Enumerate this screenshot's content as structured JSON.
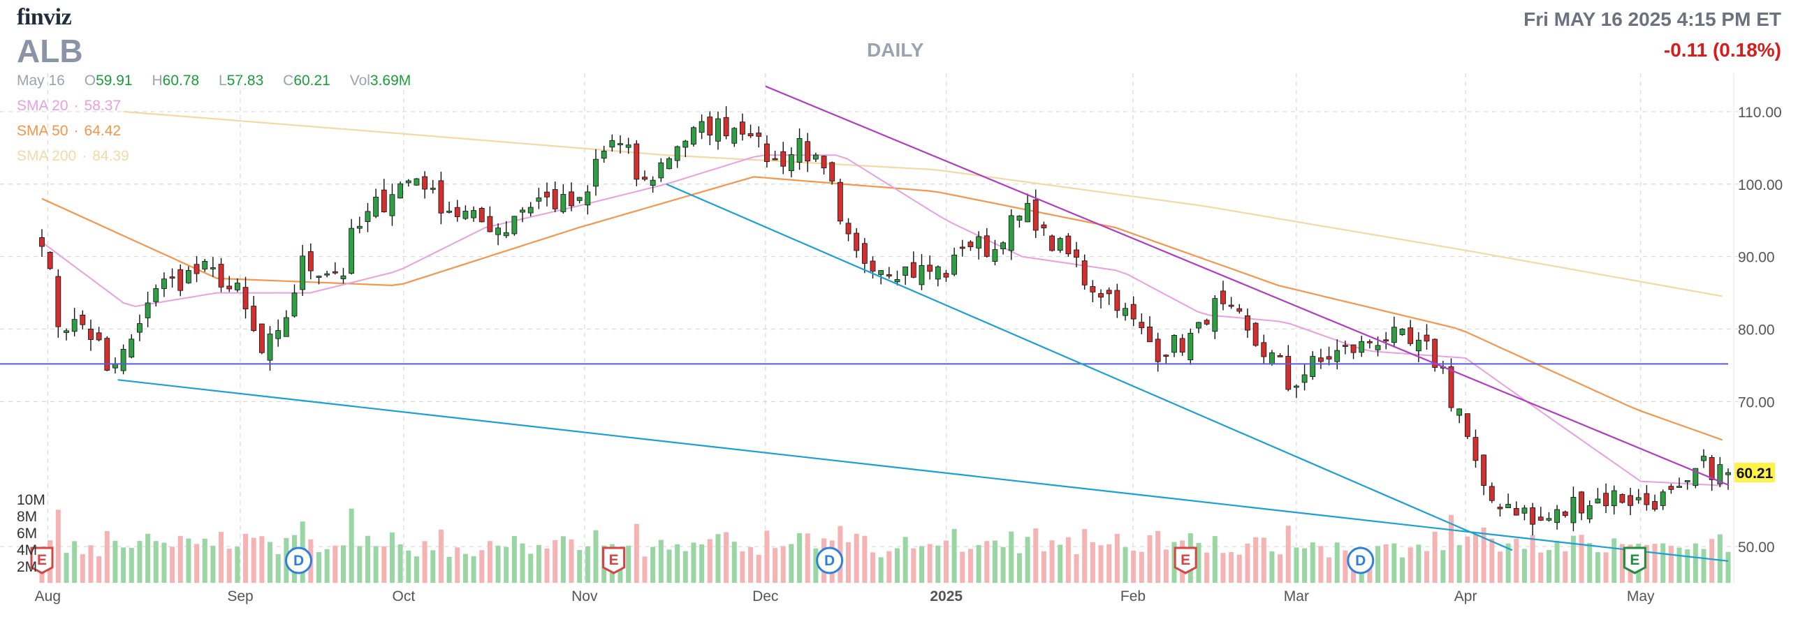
{
  "header": {
    "logo": "finviz",
    "ticker": "ALB",
    "period": "DAILY",
    "datetime": "Fri MAY 16 2025 4:15 PM ET",
    "change": "-0.11 (0.18%)"
  },
  "ohlc": {
    "date": "May 16",
    "open_label": "O",
    "open": "59.91",
    "high_label": "H",
    "high": "60.78",
    "low_label": "L",
    "low": "57.83",
    "close_label": "C",
    "close": "60.21",
    "vol_label": "Vol",
    "vol": "3.69M"
  },
  "sma": {
    "sma20_label": "SMA 20",
    "sma20": "58.37",
    "sma50_label": "SMA 50",
    "sma50": "64.42",
    "sma200_label": "SMA 200",
    "sma200": "84.39"
  },
  "colors": {
    "up": "#2ea043",
    "down": "#d32f2f",
    "up_volume": "#9ad6a3",
    "down_volume": "#f5b3b3",
    "sma20": "#e8a0e0",
    "sma50": "#f4964b",
    "sma200": "#f3d9a6",
    "trend_upper": "#b13cc4",
    "trend_lower": "#1a9fd6",
    "support": "#5b5bd6"
  },
  "chart_data": {
    "type": "candlestick",
    "last_price": "60.21",
    "ylim": [
      45,
      115
    ],
    "y_ticks": [
      "110.00",
      "100.00",
      "90.00",
      "80.00",
      "70.00",
      "50.00"
    ],
    "y_tick_values": [
      110,
      100,
      90,
      80,
      70,
      50
    ],
    "volume_ticks": [
      "10M",
      "8M",
      "6M",
      "4M",
      "2M"
    ],
    "volume_tick_values": [
      10,
      8,
      6,
      4,
      2
    ],
    "x_labels": [
      "Aug",
      "Sep",
      "Oct",
      "Nov",
      "Dec",
      "2025",
      "Feb",
      "Mar",
      "Apr",
      "May"
    ],
    "x_label_dates": [
      "2024-08-01",
      "2024-09-03",
      "2024-10-01",
      "2024-11-01",
      "2024-12-02",
      "2025-01-02",
      "2025-02-03",
      "2025-03-03",
      "2025-04-01",
      "2025-05-01"
    ],
    "start_date": "2024-07-31",
    "end_date": "2025-05-16",
    "events": [
      {
        "label": "E",
        "date": "2024-07-31",
        "kind": "earnings"
      },
      {
        "label": "D",
        "date": "2024-09-13",
        "kind": "dividend"
      },
      {
        "label": "E",
        "date": "2024-11-06",
        "kind": "earnings"
      },
      {
        "label": "D",
        "date": "2024-12-13",
        "kind": "dividend"
      },
      {
        "label": "E",
        "date": "2025-02-12",
        "kind": "earnings"
      },
      {
        "label": "D",
        "date": "2025-03-14",
        "kind": "dividend"
      },
      {
        "label": "E",
        "date": "2025-04-30",
        "kind": "earnings",
        "upcoming": true
      }
    ],
    "horizontal_lines": [
      {
        "price": 75.2
      }
    ],
    "trendlines": [
      {
        "from": [
          "2024-08-13",
          73.0
        ],
        "to": [
          "2025-05-16",
          48.0
        ],
        "kind": "lower"
      },
      {
        "from": [
          "2024-11-15",
          100.0
        ],
        "to": [
          "2025-04-09",
          49.5
        ],
        "kind": "lower"
      },
      {
        "from": [
          "2024-12-02",
          113.5
        ],
        "to": [
          "2025-05-16",
          58.5
        ],
        "kind": "upper"
      }
    ],
    "waypoints": [
      [
        "2024-07-31",
        93.0
      ],
      [
        "2024-08-02",
        81.0
      ],
      [
        "2024-08-07",
        80.5
      ],
      [
        "2024-08-12",
        73.5
      ],
      [
        "2024-08-20",
        86.0
      ],
      [
        "2024-08-28",
        88.0
      ],
      [
        "2024-09-03",
        85.0
      ],
      [
        "2024-09-06",
        76.5
      ],
      [
        "2024-09-10",
        78.5
      ],
      [
        "2024-09-13",
        89.0
      ],
      [
        "2024-09-20",
        88.0
      ],
      [
        "2024-09-26",
        97.0
      ],
      [
        "2024-10-03",
        101.0
      ],
      [
        "2024-10-10",
        96.0
      ],
      [
        "2024-10-18",
        94.0
      ],
      [
        "2024-10-24",
        98.0
      ],
      [
        "2024-10-31",
        97.0
      ],
      [
        "2024-11-06",
        106.0
      ],
      [
        "2024-11-12",
        100.0
      ],
      [
        "2024-11-15",
        104.0
      ],
      [
        "2024-11-22",
        108.0
      ],
      [
        "2024-11-29",
        108.0
      ],
      [
        "2024-12-04",
        103.0
      ],
      [
        "2024-12-09",
        106.0
      ],
      [
        "2024-12-12",
        101.0
      ],
      [
        "2024-12-18",
        90.0
      ],
      [
        "2024-12-27",
        88.0
      ],
      [
        "2025-01-02",
        88.0
      ],
      [
        "2025-01-06",
        92.0
      ],
      [
        "2025-01-10",
        91.0
      ],
      [
        "2025-01-16",
        96.0
      ],
      [
        "2025-01-22",
        91.0
      ],
      [
        "2025-01-28",
        86.0
      ],
      [
        "2025-02-03",
        82.0
      ],
      [
        "2025-02-07",
        77.0
      ],
      [
        "2025-02-12",
        78.0
      ],
      [
        "2025-02-18",
        83.0
      ],
      [
        "2025-02-24",
        79.0
      ],
      [
        "2025-03-03",
        72.0
      ],
      [
        "2025-03-06",
        75.0
      ],
      [
        "2025-03-12",
        77.0
      ],
      [
        "2025-03-19",
        79.0
      ],
      [
        "2025-03-26",
        77.0
      ],
      [
        "2025-04-01",
        69.0
      ],
      [
        "2025-04-04",
        57.0
      ],
      [
        "2025-04-09",
        56.0
      ],
      [
        "2025-04-14",
        53.0
      ],
      [
        "2025-04-21",
        56.0
      ],
      [
        "2025-04-28",
        57.0
      ],
      [
        "2025-05-02",
        56.0
      ],
      [
        "2025-05-08",
        57.0
      ],
      [
        "2025-05-13",
        61.0
      ],
      [
        "2025-05-16",
        60.21
      ]
    ],
    "sma20": [
      [
        "2024-07-31",
        92.0
      ],
      [
        "2024-08-15",
        83.0
      ],
      [
        "2024-08-30",
        85.0
      ],
      [
        "2024-09-15",
        85.0
      ],
      [
        "2024-09-30",
        88.0
      ],
      [
        "2024-10-15",
        94.0
      ],
      [
        "2024-10-31",
        97.0
      ],
      [
        "2024-11-15",
        100.0
      ],
      [
        "2024-12-01",
        104.0
      ],
      [
        "2024-12-15",
        104.0
      ],
      [
        "2025-01-02",
        95.0
      ],
      [
        "2025-01-15",
        90.0
      ],
      [
        "2025-02-01",
        88.0
      ],
      [
        "2025-02-15",
        82.0
      ],
      [
        "2025-03-01",
        81.0
      ],
      [
        "2025-03-15",
        77.0
      ],
      [
        "2025-04-01",
        76.0
      ],
      [
        "2025-04-15",
        68.0
      ],
      [
        "2025-05-01",
        59.0
      ],
      [
        "2025-05-16",
        58.37
      ]
    ],
    "sma50": [
      [
        "2024-07-31",
        98.0
      ],
      [
        "2024-08-30",
        87.0
      ],
      [
        "2024-09-30",
        86.0
      ],
      [
        "2024-10-31",
        94.0
      ],
      [
        "2024-11-30",
        101.0
      ],
      [
        "2024-12-31",
        99.0
      ],
      [
        "2025-01-31",
        94.0
      ],
      [
        "2025-02-28",
        86.0
      ],
      [
        "2025-03-31",
        80.0
      ],
      [
        "2025-04-30",
        69.0
      ],
      [
        "2025-05-16",
        64.42
      ]
    ],
    "sma200": [
      [
        "2024-08-14",
        110.0
      ],
      [
        "2024-09-30",
        107.0
      ],
      [
        "2024-11-15",
        104.0
      ],
      [
        "2024-12-31",
        102.0
      ],
      [
        "2025-02-15",
        97.0
      ],
      [
        "2025-03-31",
        91.0
      ],
      [
        "2025-05-16",
        84.39
      ]
    ]
  }
}
